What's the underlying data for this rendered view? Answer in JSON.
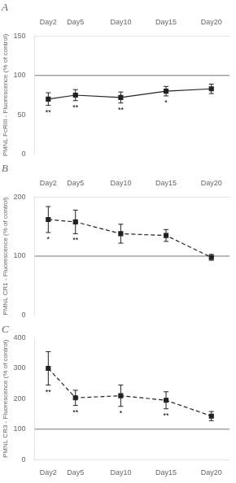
{
  "chart_data": [
    {
      "type": "line",
      "title": "A",
      "y_label": "PMNL FcRIII - Fluorescence (% of control)",
      "x": [
        2,
        5,
        10,
        15,
        20
      ],
      "xlim": [
        0.5,
        22
      ],
      "xticks": [
        {
          "value": 2,
          "label": "Day2"
        },
        {
          "value": 5,
          "label": "Day5"
        },
        {
          "value": 10,
          "label": "Day10"
        },
        {
          "value": 15,
          "label": "Day15"
        },
        {
          "value": 20,
          "label": "Day20"
        }
      ],
      "ylim": [
        0,
        150
      ],
      "yticks": [
        0,
        50,
        100,
        150
      ],
      "values": [
        70,
        75,
        72,
        80,
        83
      ],
      "errors": [
        8,
        7,
        7,
        6,
        6
      ],
      "reference_line": 100,
      "annotations": [
        {
          "x": 2,
          "text": "**"
        },
        {
          "x": 5,
          "text": "**"
        },
        {
          "x": 10,
          "text": "**"
        },
        {
          "x": 15,
          "text": "*"
        }
      ],
      "color": "#222222",
      "marker": "square",
      "line_style": "solid",
      "grid": false
    },
    {
      "type": "line",
      "title": "B",
      "y_label": "PMNL CR1 - Fluorescence (% of control)",
      "x": [
        2,
        5,
        10,
        15,
        20
      ],
      "xlim": [
        0.5,
        22
      ],
      "xticks": [
        {
          "value": 2,
          "label": "Day2"
        },
        {
          "value": 5,
          "label": "Day5"
        },
        {
          "value": 10,
          "label": "Day10"
        },
        {
          "value": 15,
          "label": "Day15"
        },
        {
          "value": 20,
          "label": "Day20"
        }
      ],
      "ylim": [
        0,
        200
      ],
      "yticks": [
        0,
        100,
        200
      ],
      "values": [
        162,
        158,
        138,
        135,
        98
      ],
      "errors": [
        22,
        20,
        16,
        10,
        5
      ],
      "reference_line": 100,
      "annotations": [
        {
          "x": 2,
          "text": "*"
        },
        {
          "x": 5,
          "text": "**"
        }
      ],
      "color": "#222222",
      "marker": "square",
      "line_style": "dashed",
      "grid": false
    },
    {
      "type": "line",
      "title": "C",
      "y_label": "PMNL CR3 - Fluorescence (% of control)",
      "x": [
        2,
        5,
        10,
        15,
        20
      ],
      "xlim": [
        0.5,
        22
      ],
      "xticks": [
        {
          "value": 2,
          "label": "Day2"
        },
        {
          "value": 5,
          "label": "Day5"
        },
        {
          "value": 10,
          "label": "Day10"
        },
        {
          "value": 15,
          "label": "Day15"
        },
        {
          "value": 20,
          "label": "Day20"
        }
      ],
      "ylim": [
        0,
        400
      ],
      "yticks": [
        0,
        100,
        200,
        300,
        400
      ],
      "values": [
        300,
        203,
        210,
        195,
        143
      ],
      "errors": [
        55,
        25,
        35,
        28,
        15
      ],
      "reference_line": 100,
      "annotations": [
        {
          "x": 2,
          "text": "**"
        },
        {
          "x": 5,
          "text": "**"
        },
        {
          "x": 10,
          "text": "*"
        },
        {
          "x": 15,
          "text": "**"
        }
      ],
      "color": "#222222",
      "marker": "square",
      "line_style": "dashed",
      "grid": false
    }
  ]
}
